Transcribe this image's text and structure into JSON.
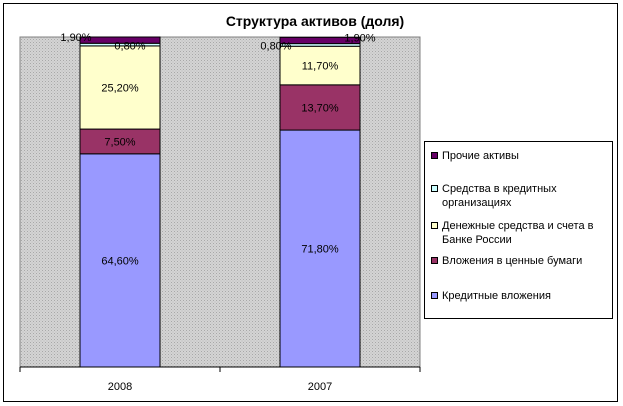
{
  "chart_data": {
    "type": "bar",
    "stacked": true,
    "title": "Структура активов (доля)",
    "categories": [
      "2008",
      "2007"
    ],
    "ylim": [
      0,
      100
    ],
    "grid": false,
    "legend_position": "right",
    "series": [
      {
        "name": "Кредитные вложения",
        "color": "#9999ff",
        "values": [
          64.6,
          71.8
        ],
        "labels": [
          "64,60%",
          "71,80%"
        ]
      },
      {
        "name": "Вложения в ценные бумаги",
        "color": "#993366",
        "values": [
          7.5,
          13.7
        ],
        "labels": [
          "7,50%",
          "13,70%"
        ]
      },
      {
        "name": "Денежные средства и счета в Банке России",
        "color": "#ffffcc",
        "values": [
          25.2,
          11.7
        ],
        "labels": [
          "25,20%",
          "11,70%"
        ]
      },
      {
        "name": "Средства в кредитных организациях",
        "color": "#ccffff",
        "values": [
          0.8,
          0.8
        ],
        "labels": [
          "0,80%",
          "0,80%"
        ]
      },
      {
        "name": "Прочие активы",
        "color": "#660066",
        "values": [
          1.9,
          1.9
        ],
        "labels": [
          "1,90%",
          "1,90%"
        ]
      }
    ]
  }
}
